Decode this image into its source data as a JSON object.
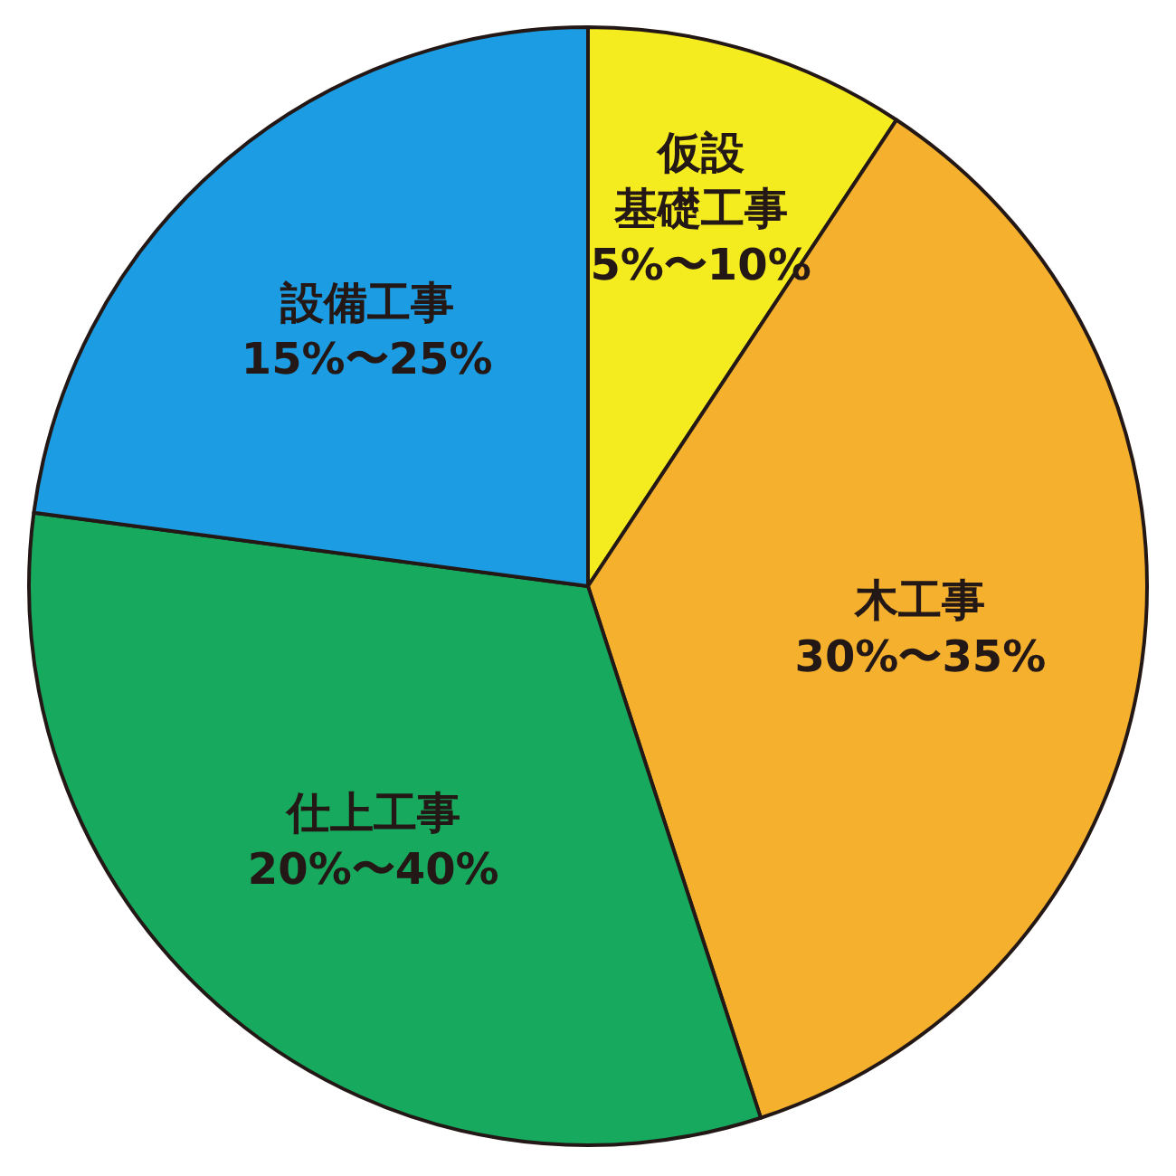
{
  "chart_data": {
    "type": "pie",
    "categories": [
      "仮設基礎工事",
      "木工事",
      "仕上工事",
      "設備工事"
    ],
    "values": [
      9.3,
      35.7,
      32.1,
      22.9
    ],
    "annotations": [
      "5%〜10%",
      "30%〜35%",
      "20%〜40%",
      "15%〜25%"
    ],
    "colors": [
      "#f5ec1f",
      "#f5b12e",
      "#17a95d",
      "#1c9de3"
    ]
  }
}
